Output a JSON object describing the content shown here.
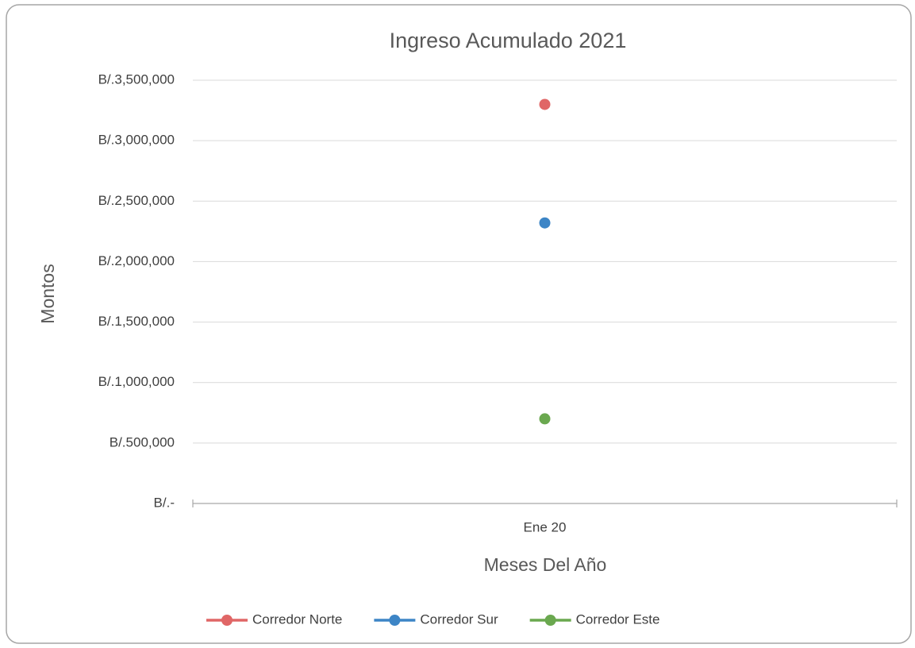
{
  "chart_data": {
    "type": "line",
    "title": "Ingreso Acumulado 2021",
    "y_label": "Montos",
    "x_label": "Meses Del Año",
    "categories": [
      "Ene 20"
    ],
    "series": [
      {
        "name": "Corredor Norte",
        "color": "#e06666",
        "values": [
          3300000
        ]
      },
      {
        "name": "Corredor Sur",
        "color": "#3d85c6",
        "values": [
          2320000
        ]
      },
      {
        "name": "Corredor Este",
        "color": "#6aa84f",
        "values": [
          700000
        ]
      }
    ],
    "ylim": [
      0,
      3500000
    ],
    "yticks": [
      {
        "value": 0,
        "label": "B/.-"
      },
      {
        "value": 500000,
        "label": "B/.500,000"
      },
      {
        "value": 1000000,
        "label": "B/.1,000,000"
      },
      {
        "value": 1500000,
        "label": "B/.1,500,000"
      },
      {
        "value": 2000000,
        "label": "B/.2,000,000"
      },
      {
        "value": 2500000,
        "label": "B/.2,500,000"
      },
      {
        "value": 3000000,
        "label": "B/.3,000,000"
      },
      {
        "value": 3500000,
        "label": "B/.3,500,000"
      }
    ],
    "grid": true,
    "legend": "bottom"
  }
}
